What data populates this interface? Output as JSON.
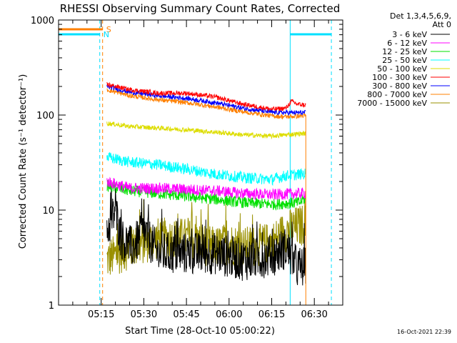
{
  "chart_data": {
    "type": "line",
    "title": "RHESSI Observing Summary Count Rates, Corrected",
    "xlabel": "Start Time (28-Oct-10 05:00:22)",
    "ylabel": "Corrected Count Rate (s⁻¹ detector⁻¹)",
    "yscale": "log",
    "ylim": [
      1,
      1000
    ],
    "xlim_minutes": [
      0,
      100
    ],
    "y_tick_labels": [
      "1",
      "10",
      "100",
      "1000"
    ],
    "x_tick_labels": [
      "05:15",
      "05:30",
      "05:45",
      "06:00",
      "06:15",
      "06:30"
    ],
    "x_tick_minutes": [
      15,
      30,
      45,
      60,
      75,
      90
    ],
    "legend_header": [
      "Det 1,3,4,5,6,9,",
      "Att 0"
    ],
    "legend_position": "right",
    "date_stamp": "16-Oct-2021 22:39",
    "data_start_minute": 17,
    "data_end_minute": 87,
    "saa_flag_label": "S",
    "night_flag_label": "N",
    "night_intervals_minutes": [
      [
        0,
        14.5
      ],
      [
        81.5,
        96
      ]
    ],
    "saa_intervals_minutes": [
      [
        0,
        15.5
      ]
    ],
    "series": [
      {
        "name": "3 - 6 keV",
        "color": "#000000",
        "x": [
          17,
          20,
          22,
          26,
          30,
          35,
          45,
          55,
          65,
          75,
          80,
          84,
          86
        ],
        "y": [
          6,
          10,
          5,
          4,
          6,
          3.5,
          3.5,
          3.5,
          3,
          3.3,
          4,
          2.5,
          2.5
        ]
      },
      {
        "name": "6 - 12 keV",
        "color": "#ff00ff",
        "x": [
          17,
          25,
          35,
          45,
          55,
          65,
          75,
          85,
          86
        ],
        "y": [
          20,
          17,
          17,
          16.5,
          16,
          15,
          14.5,
          15,
          15
        ]
      },
      {
        "name": "12 - 25 keV",
        "color": "#00e000",
        "x": [
          17,
          25,
          35,
          45,
          55,
          65,
          75,
          85,
          86
        ],
        "y": [
          18,
          16,
          15,
          14,
          13,
          12,
          11.5,
          12,
          13
        ]
      },
      {
        "name": "25 - 50 keV",
        "color": "#00ffff",
        "x": [
          17,
          25,
          35,
          45,
          55,
          65,
          75,
          80,
          86
        ],
        "y": [
          36,
          32,
          30,
          27,
          24,
          22,
          21,
          23,
          24
        ]
      },
      {
        "name": "50 - 100 keV",
        "color": "#dddd00",
        "x": [
          17,
          25,
          35,
          45,
          55,
          65,
          75,
          80,
          86
        ],
        "y": [
          82,
          76,
          73,
          70,
          66,
          62,
          60,
          62,
          64
        ]
      },
      {
        "name": "100 - 300 keV",
        "color": "#ff0000",
        "x": [
          17,
          25,
          35,
          45,
          55,
          65,
          75,
          80,
          82,
          84,
          86
        ],
        "y": [
          210,
          185,
          170,
          170,
          155,
          130,
          115,
          118,
          140,
          130,
          128
        ]
      },
      {
        "name": "300 - 800 keV",
        "color": "#0000ff",
        "x": [
          17,
          25,
          35,
          45,
          55,
          65,
          75,
          80,
          86
        ],
        "y": [
          200,
          175,
          160,
          150,
          135,
          118,
          107,
          106,
          106
        ]
      },
      {
        "name": "800 - 7000 keV",
        "color": "#ff8000",
        "x": [
          17,
          25,
          35,
          45,
          55,
          65,
          75,
          80,
          86
        ],
        "y": [
          185,
          160,
          145,
          135,
          122,
          108,
          98,
          96,
          98
        ]
      },
      {
        "name": "7000 - 15000 keV",
        "color": "#9a9000",
        "x": [
          17,
          25,
          35,
          45,
          55,
          60,
          65,
          75,
          80,
          86
        ],
        "y": [
          3,
          4,
          5,
          5,
          4,
          4.5,
          4,
          4.5,
          6,
          7
        ]
      }
    ]
  }
}
